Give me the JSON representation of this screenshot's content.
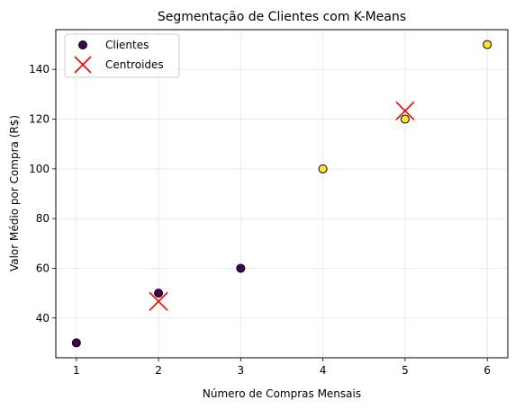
{
  "chart_data": {
    "type": "scatter",
    "title": "Segmentação de Clientes com K-Means",
    "xlabel": "Número de Compras Mensais",
    "ylabel": "Valor Médio por Compra (R$)",
    "xlim": [
      0.75,
      6.25
    ],
    "ylim": [
      24,
      156
    ],
    "xticks": [
      1,
      2,
      3,
      4,
      5,
      6
    ],
    "yticks": [
      40,
      60,
      80,
      100,
      120,
      140
    ],
    "grid": true,
    "legend_position": "top-left",
    "series": [
      {
        "name": "Clientes",
        "marker": "circle",
        "points": [
          {
            "x": 1,
            "y": 30,
            "cluster": 0
          },
          {
            "x": 2,
            "y": 50,
            "cluster": 0
          },
          {
            "x": 3,
            "y": 60,
            "cluster": 0
          },
          {
            "x": 4,
            "y": 100,
            "cluster": 1
          },
          {
            "x": 5,
            "y": 120,
            "cluster": 1
          },
          {
            "x": 6,
            "y": 150,
            "cluster": 1
          }
        ]
      },
      {
        "name": "Centroides",
        "marker": "x",
        "color": "#ff0000",
        "points": [
          {
            "x": 2,
            "y": 46.67
          },
          {
            "x": 5,
            "y": 123.33
          }
        ]
      }
    ],
    "cluster_colors": [
      "#440154",
      "#fde725"
    ]
  }
}
